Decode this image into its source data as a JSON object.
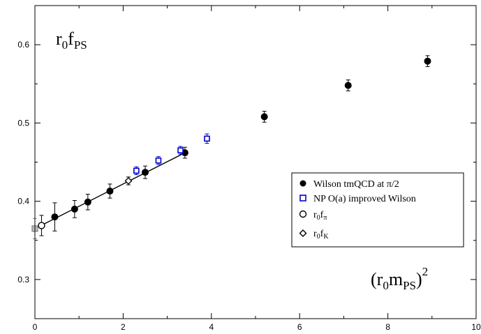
{
  "chart_data": {
    "type": "scatter",
    "title": "",
    "xlabel": "",
    "ylabel": "",
    "xlim": [
      0,
      10
    ],
    "ylim": [
      0.25,
      0.65
    ],
    "x_ticks": [
      0,
      2,
      4,
      6,
      8,
      10
    ],
    "y_ticks": [
      0.3,
      0.4,
      0.5,
      0.6
    ],
    "x_tick_labels": [
      "0",
      "2",
      "4",
      "6",
      "8",
      "10"
    ],
    "y_tick_labels": [
      "0.3",
      "0.4",
      "0.5",
      "0.6"
    ],
    "grid": false,
    "legend_position": "right",
    "annotations": {
      "y_quantity": {
        "base": "r",
        "sub1": "0",
        "mid": "f",
        "sub2": "PS"
      },
      "x_quantity": {
        "open": "(r",
        "sub1": "0",
        "mid": "m",
        "sub2": "PS",
        "close": ")",
        "sup": "2"
      }
    },
    "fit_line": {
      "x": [
        0,
        3.4
      ],
      "y": [
        0.365,
        0.462
      ]
    },
    "series": [
      {
        "name": "Wilson tmQCD at π/2",
        "marker": "filled-circle",
        "color": "#000000",
        "points": [
          {
            "x": 0.45,
            "y": 0.38,
            "err": 0.018
          },
          {
            "x": 0.9,
            "y": 0.39,
            "err": 0.011
          },
          {
            "x": 1.2,
            "y": 0.399,
            "err": 0.01
          },
          {
            "x": 1.7,
            "y": 0.413,
            "err": 0.009
          },
          {
            "x": 2.5,
            "y": 0.437,
            "err": 0.008
          },
          {
            "x": 3.4,
            "y": 0.462,
            "err": 0.007
          },
          {
            "x": 5.2,
            "y": 0.508,
            "err": 0.007
          },
          {
            "x": 7.1,
            "y": 0.548,
            "err": 0.007
          },
          {
            "x": 8.9,
            "y": 0.579,
            "err": 0.007
          }
        ]
      },
      {
        "name": "NP O(a) improved Wilson",
        "marker": "open-square",
        "color": "#0000cc",
        "points": [
          {
            "x": 2.3,
            "y": 0.439,
            "err": 0.005
          },
          {
            "x": 2.8,
            "y": 0.452,
            "err": 0.005
          },
          {
            "x": 3.3,
            "y": 0.465,
            "err": 0.005
          },
          {
            "x": 3.9,
            "y": 0.48,
            "err": 0.006
          }
        ]
      },
      {
        "name_base": "r",
        "name_sub1": "0",
        "name_mid": "f",
        "name_sub2": "π",
        "marker": "open-circle",
        "color": "#000000",
        "points": [
          {
            "x": 0.15,
            "y": 0.369,
            "err": 0.013
          }
        ]
      },
      {
        "name_base": "r",
        "name_sub1": "0",
        "name_mid": "f",
        "name_sub2": "K",
        "marker": "open-diamond",
        "color": "#000000",
        "points": [
          {
            "x": 2.12,
            "y": 0.426,
            "err": 0.005
          }
        ]
      },
      {
        "marker": "grey-square",
        "color": "#808080",
        "points": [
          {
            "x": 0.0,
            "y": 0.365,
            "err": 0.013
          }
        ]
      }
    ]
  }
}
